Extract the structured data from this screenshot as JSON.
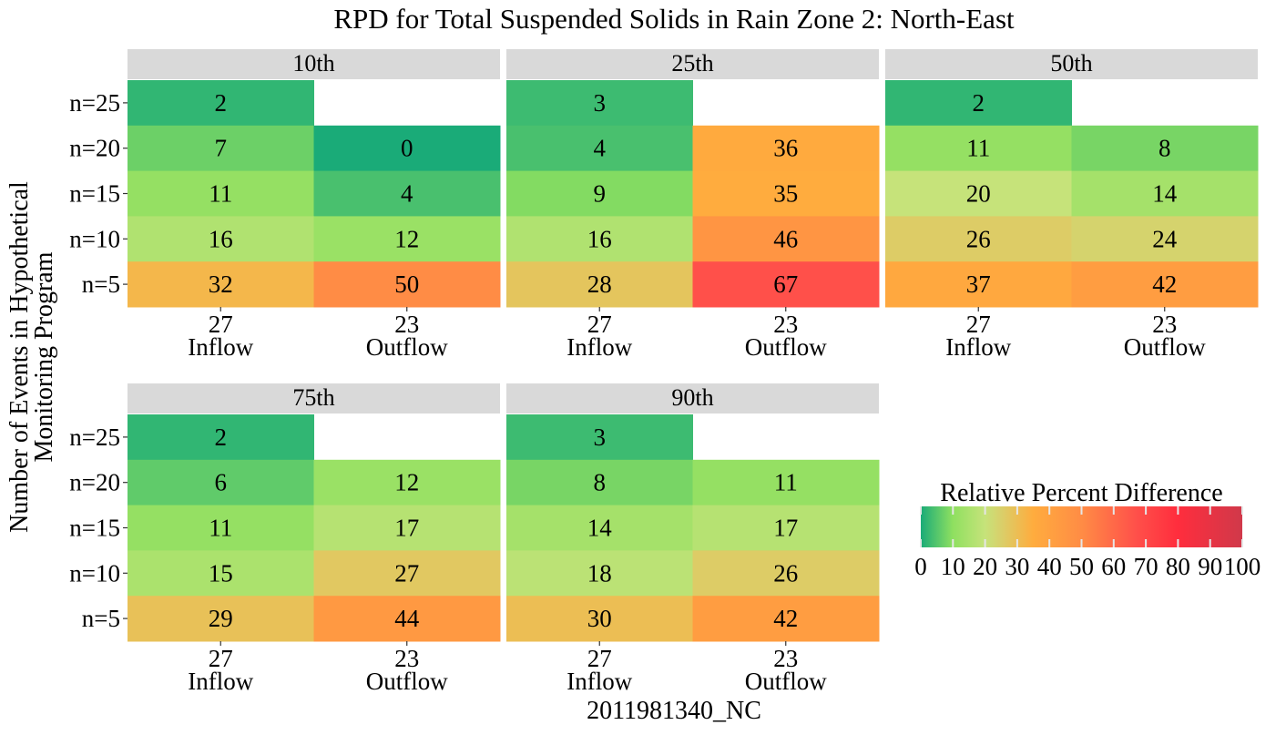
{
  "chart_data": {
    "type": "heatmap",
    "title": "RPD for Total Suspended Solids in Rain Zone 2: North-East",
    "ylabel": "Number of Events in Hypothetical Monitoring Program",
    "xlabel": "2011981340_NC",
    "rows": [
      "n=25",
      "n=20",
      "n=15",
      "n=10",
      "n=5"
    ],
    "columns": [
      {
        "count": "27",
        "name": "Inflow"
      },
      {
        "count": "23",
        "name": "Outflow"
      }
    ],
    "panels": [
      {
        "label": "10th",
        "values": [
          [
            2,
            null
          ],
          [
            7,
            0
          ],
          [
            11,
            4
          ],
          [
            16,
            12
          ],
          [
            32,
            50
          ]
        ]
      },
      {
        "label": "25th",
        "values": [
          [
            3,
            null
          ],
          [
            4,
            36
          ],
          [
            9,
            35
          ],
          [
            16,
            46
          ],
          [
            28,
            67
          ]
        ]
      },
      {
        "label": "50th",
        "values": [
          [
            2,
            null
          ],
          [
            11,
            8
          ],
          [
            20,
            14
          ],
          [
            26,
            24
          ],
          [
            37,
            42
          ]
        ]
      },
      {
        "label": "75th",
        "values": [
          [
            2,
            null
          ],
          [
            6,
            12
          ],
          [
            11,
            17
          ],
          [
            15,
            27
          ],
          [
            29,
            44
          ]
        ]
      },
      {
        "label": "90th",
        "values": [
          [
            3,
            null
          ],
          [
            8,
            11
          ],
          [
            14,
            17
          ],
          [
            18,
            26
          ],
          [
            30,
            42
          ]
        ]
      }
    ],
    "legend": {
      "title": "Relative Percent Difference",
      "ticks": [
        0,
        10,
        20,
        30,
        40,
        50,
        60,
        70,
        80,
        90,
        100
      ],
      "range": [
        0,
        100
      ],
      "colors": [
        {
          "value": 0,
          "color": "#1aab78"
        },
        {
          "value": 10,
          "color": "#8fe060"
        },
        {
          "value": 20,
          "color": "#c6e37a"
        },
        {
          "value": 25,
          "color": "#d9cf6a"
        },
        {
          "value": 35,
          "color": "#ffac3e"
        },
        {
          "value": 50,
          "color": "#ff8c45"
        },
        {
          "value": 67,
          "color": "#ff504a"
        },
        {
          "value": 80,
          "color": "#ff2d3d"
        },
        {
          "value": 100,
          "color": "#d0394a"
        }
      ]
    },
    "panel_strip_color": "#d9d9d9"
  }
}
